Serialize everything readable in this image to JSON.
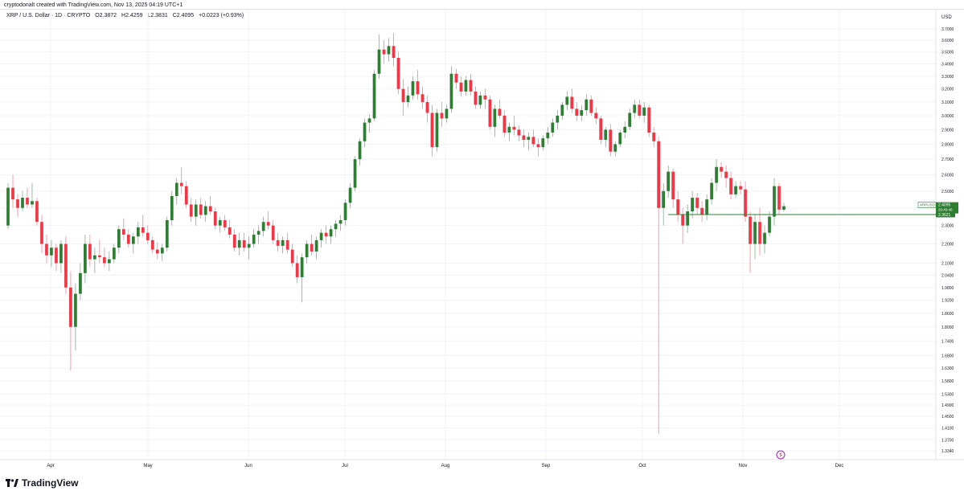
{
  "header": {
    "credit": "cryptodonalt created with TradingView.com, Nov 13, 2025 04:19 UTC+1"
  },
  "symbol": {
    "name": "XRP / U.S. Dollar · 1D · CRYPTO",
    "open": "O2.3872",
    "high": "H2.4259",
    "low": "L2.3831",
    "close": "C2.4095",
    "change": "+0.0223 (+0.93%)"
  },
  "brand": {
    "name": "TradingView",
    "logo_icon": "tradingview-logo-icon"
  },
  "colors": {
    "up": "#22ab94",
    "up_body": "#2e7d32",
    "down": "#f23645",
    "grid": "#f0f3fa",
    "price_line": "#2e7d32",
    "wick": "#5d606b"
  },
  "chart_data": {
    "type": "candlestick",
    "title": "XRP / U.S. Dollar · 1D · CRYPTO",
    "currency": "USD",
    "y_scale": "log",
    "ylim": [
      1.334,
      3.7
    ],
    "y_ticks": [
      "3.7000",
      "3.6000",
      "3.5000",
      "3.4000",
      "3.3000",
      "3.2000",
      "3.1000",
      "3.0000",
      "2.9000",
      "2.8000",
      "2.7000",
      "2.6000",
      "2.5000",
      "2.4000",
      "2.3000",
      "2.2000",
      "2.1000",
      "2.0400",
      "1.9800",
      "1.9200",
      "1.8600",
      "1.8000",
      "1.7400",
      "1.6800",
      "1.6300",
      "1.5800",
      "1.5300",
      "1.4900",
      "1.4500",
      "1.4100",
      "1.3700",
      "1.3340"
    ],
    "x_ticks": [
      "Apr",
      "May",
      "Jun",
      "Jul",
      "Aug",
      "Sep",
      "Oct",
      "Nov",
      "Dec"
    ],
    "price_label": {
      "symbol": "XRPUSD",
      "price": "2.4095",
      "countdown": "20:40:46"
    },
    "level_label": "2.3621",
    "level": 2.3621,
    "candles_ohlc": [
      [
        2.3,
        2.55,
        2.28,
        2.52
      ],
      [
        2.52,
        2.6,
        2.4,
        2.45
      ],
      [
        2.45,
        2.48,
        2.35,
        2.4
      ],
      [
        2.4,
        2.5,
        2.38,
        2.46
      ],
      [
        2.46,
        2.52,
        2.4,
        2.42
      ],
      [
        2.42,
        2.55,
        2.4,
        2.44
      ],
      [
        2.44,
        2.46,
        2.3,
        2.32
      ],
      [
        2.32,
        2.36,
        2.15,
        2.2
      ],
      [
        2.2,
        2.25,
        2.1,
        2.14
      ],
      [
        2.14,
        2.22,
        2.08,
        2.18
      ],
      [
        2.18,
        2.2,
        2.06,
        2.1
      ],
      [
        2.1,
        2.22,
        2.05,
        2.2
      ],
      [
        2.2,
        2.24,
        1.95,
        1.98
      ],
      [
        1.98,
        2.06,
        1.62,
        1.8
      ],
      [
        1.8,
        2.0,
        1.7,
        1.95
      ],
      [
        1.95,
        2.1,
        1.92,
        2.05
      ],
      [
        2.05,
        2.25,
        2.0,
        2.2
      ],
      [
        2.2,
        2.25,
        2.08,
        2.12
      ],
      [
        2.12,
        2.18,
        2.05,
        2.14
      ],
      [
        2.14,
        2.22,
        2.1,
        2.13
      ],
      [
        2.13,
        2.18,
        2.08,
        2.1
      ],
      [
        2.1,
        2.16,
        2.06,
        2.12
      ],
      [
        2.12,
        2.2,
        2.1,
        2.18
      ],
      [
        2.18,
        2.3,
        2.15,
        2.28
      ],
      [
        2.28,
        2.34,
        2.22,
        2.25
      ],
      [
        2.25,
        2.28,
        2.18,
        2.2
      ],
      [
        2.2,
        2.26,
        2.15,
        2.24
      ],
      [
        2.24,
        2.32,
        2.2,
        2.29
      ],
      [
        2.29,
        2.36,
        2.24,
        2.26
      ],
      [
        2.26,
        2.3,
        2.2,
        2.22
      ],
      [
        2.22,
        2.24,
        2.15,
        2.17
      ],
      [
        2.17,
        2.21,
        2.12,
        2.15
      ],
      [
        2.15,
        2.2,
        2.11,
        2.18
      ],
      [
        2.18,
        2.35,
        2.16,
        2.33
      ],
      [
        2.33,
        2.5,
        2.3,
        2.47
      ],
      [
        2.47,
        2.58,
        2.42,
        2.55
      ],
      [
        2.55,
        2.65,
        2.48,
        2.53
      ],
      [
        2.53,
        2.56,
        2.4,
        2.42
      ],
      [
        2.42,
        2.46,
        2.32,
        2.35
      ],
      [
        2.35,
        2.45,
        2.3,
        2.42
      ],
      [
        2.42,
        2.46,
        2.34,
        2.36
      ],
      [
        2.36,
        2.44,
        2.32,
        2.41
      ],
      [
        2.41,
        2.47,
        2.36,
        2.38
      ],
      [
        2.38,
        2.4,
        2.28,
        2.3
      ],
      [
        2.3,
        2.35,
        2.26,
        2.33
      ],
      [
        2.33,
        2.36,
        2.27,
        2.29
      ],
      [
        2.29,
        2.33,
        2.23,
        2.25
      ],
      [
        2.25,
        2.28,
        2.16,
        2.18
      ],
      [
        2.18,
        2.26,
        2.14,
        2.22
      ],
      [
        2.22,
        2.26,
        2.16,
        2.18
      ],
      [
        2.18,
        2.24,
        2.12,
        2.2
      ],
      [
        2.2,
        2.28,
        2.18,
        2.25
      ],
      [
        2.25,
        2.3,
        2.2,
        2.27
      ],
      [
        2.27,
        2.35,
        2.24,
        2.32
      ],
      [
        2.32,
        2.38,
        2.28,
        2.3
      ],
      [
        2.3,
        2.33,
        2.2,
        2.22
      ],
      [
        2.22,
        2.26,
        2.16,
        2.19
      ],
      [
        2.19,
        2.24,
        2.15,
        2.22
      ],
      [
        2.22,
        2.26,
        2.15,
        2.17
      ],
      [
        2.17,
        2.2,
        2.08,
        2.1
      ],
      [
        2.1,
        2.14,
        2.0,
        2.03
      ],
      [
        2.03,
        2.15,
        1.91,
        2.13
      ],
      [
        2.13,
        2.22,
        2.1,
        2.2
      ],
      [
        2.2,
        2.25,
        2.14,
        2.16
      ],
      [
        2.16,
        2.24,
        2.12,
        2.22
      ],
      [
        2.22,
        2.28,
        2.18,
        2.26
      ],
      [
        2.26,
        2.3,
        2.2,
        2.24
      ],
      [
        2.24,
        2.3,
        2.2,
        2.28
      ],
      [
        2.28,
        2.33,
        2.24,
        2.31
      ],
      [
        2.31,
        2.36,
        2.27,
        2.33
      ],
      [
        2.33,
        2.45,
        2.3,
        2.43
      ],
      [
        2.43,
        2.55,
        2.4,
        2.52
      ],
      [
        2.52,
        2.72,
        2.5,
        2.7
      ],
      [
        2.7,
        2.84,
        2.66,
        2.82
      ],
      [
        2.82,
        2.98,
        2.78,
        2.95
      ],
      [
        2.95,
        3.01,
        2.88,
        2.98
      ],
      [
        2.98,
        3.35,
        2.96,
        3.32
      ],
      [
        3.32,
        3.65,
        3.28,
        3.52
      ],
      [
        3.52,
        3.6,
        3.4,
        3.48
      ],
      [
        3.48,
        3.62,
        3.42,
        3.55
      ],
      [
        3.55,
        3.66,
        3.38,
        3.45
      ],
      [
        3.45,
        3.5,
        3.16,
        3.2
      ],
      [
        3.2,
        3.28,
        3.0,
        3.1
      ],
      [
        3.1,
        3.22,
        3.06,
        3.15
      ],
      [
        3.15,
        3.3,
        3.12,
        3.26
      ],
      [
        3.26,
        3.35,
        3.12,
        3.16
      ],
      [
        3.16,
        3.22,
        3.05,
        3.1
      ],
      [
        3.1,
        3.15,
        2.95,
        3.02
      ],
      [
        3.02,
        3.08,
        2.72,
        2.78
      ],
      [
        2.78,
        3.05,
        2.75,
        3.02
      ],
      [
        3.02,
        3.1,
        2.92,
        2.98
      ],
      [
        2.98,
        3.08,
        2.95,
        3.05
      ],
      [
        3.05,
        3.38,
        3.02,
        3.32
      ],
      [
        3.32,
        3.36,
        3.2,
        3.25
      ],
      [
        3.25,
        3.3,
        3.14,
        3.18
      ],
      [
        3.18,
        3.3,
        3.15,
        3.27
      ],
      [
        3.27,
        3.32,
        3.15,
        3.18
      ],
      [
        3.18,
        3.22,
        3.05,
        3.08
      ],
      [
        3.08,
        3.18,
        3.05,
        3.15
      ],
      [
        3.15,
        3.2,
        3.05,
        3.12
      ],
      [
        3.12,
        3.15,
        2.9,
        2.92
      ],
      [
        2.92,
        3.08,
        2.85,
        3.05
      ],
      [
        3.05,
        3.12,
        2.98,
        3.0
      ],
      [
        3.0,
        3.04,
        2.85,
        2.88
      ],
      [
        2.88,
        2.95,
        2.82,
        2.92
      ],
      [
        2.92,
        3.0,
        2.86,
        2.9
      ],
      [
        2.9,
        2.93,
        2.82,
        2.86
      ],
      [
        2.86,
        2.9,
        2.78,
        2.83
      ],
      [
        2.83,
        2.88,
        2.76,
        2.85
      ],
      [
        2.85,
        2.9,
        2.78,
        2.8
      ],
      [
        2.8,
        2.84,
        2.72,
        2.78
      ],
      [
        2.78,
        2.86,
        2.76,
        2.84
      ],
      [
        2.84,
        2.92,
        2.8,
        2.88
      ],
      [
        2.88,
        2.98,
        2.85,
        2.95
      ],
      [
        2.95,
        3.04,
        2.9,
        3.0
      ],
      [
        3.0,
        3.1,
        2.97,
        3.08
      ],
      [
        3.08,
        3.18,
        3.04,
        3.14
      ],
      [
        3.14,
        3.2,
        3.02,
        3.05
      ],
      [
        3.05,
        3.1,
        2.96,
        3.0
      ],
      [
        3.0,
        3.08,
        2.96,
        3.04
      ],
      [
        3.04,
        3.16,
        3.0,
        3.12
      ],
      [
        3.12,
        3.15,
        3.0,
        3.02
      ],
      [
        3.02,
        3.06,
        2.94,
        2.98
      ],
      [
        2.98,
        3.0,
        2.8,
        2.83
      ],
      [
        2.83,
        2.92,
        2.78,
        2.9
      ],
      [
        2.9,
        2.94,
        2.72,
        2.75
      ],
      [
        2.75,
        2.82,
        2.72,
        2.8
      ],
      [
        2.8,
        2.9,
        2.78,
        2.88
      ],
      [
        2.88,
        2.96,
        2.84,
        2.92
      ],
      [
        2.92,
        3.05,
        2.9,
        3.02
      ],
      [
        3.02,
        3.12,
        2.98,
        3.08
      ],
      [
        3.08,
        3.12,
        2.98,
        3.0
      ],
      [
        3.0,
        3.1,
        2.95,
        3.06
      ],
      [
        3.06,
        3.08,
        2.85,
        2.88
      ],
      [
        2.88,
        2.92,
        2.78,
        2.82
      ],
      [
        2.82,
        2.85,
        1.39,
        2.4
      ],
      [
        2.4,
        2.55,
        2.3,
        2.5
      ],
      [
        2.5,
        2.66,
        2.46,
        2.62
      ],
      [
        2.62,
        2.64,
        2.4,
        2.45
      ],
      [
        2.45,
        2.5,
        2.32,
        2.36
      ],
      [
        2.36,
        2.4,
        2.2,
        2.3
      ],
      [
        2.3,
        2.42,
        2.26,
        2.38
      ],
      [
        2.38,
        2.5,
        2.34,
        2.46
      ],
      [
        2.46,
        2.49,
        2.36,
        2.4
      ],
      [
        2.4,
        2.44,
        2.32,
        2.36
      ],
      [
        2.36,
        2.48,
        2.33,
        2.45
      ],
      [
        2.45,
        2.58,
        2.42,
        2.55
      ],
      [
        2.55,
        2.7,
        2.5,
        2.65
      ],
      [
        2.65,
        2.68,
        2.58,
        2.62
      ],
      [
        2.62,
        2.66,
        2.52,
        2.58
      ],
      [
        2.58,
        2.62,
        2.45,
        2.48
      ],
      [
        2.48,
        2.56,
        2.46,
        2.53
      ],
      [
        2.53,
        2.56,
        2.48,
        2.51
      ],
      [
        2.51,
        2.56,
        2.32,
        2.35
      ],
      [
        2.35,
        2.38,
        2.05,
        2.2
      ],
      [
        2.2,
        2.36,
        2.12,
        2.32
      ],
      [
        2.32,
        2.4,
        2.14,
        2.2
      ],
      [
        2.2,
        2.3,
        2.15,
        2.26
      ],
      [
        2.26,
        2.38,
        2.24,
        2.35
      ],
      [
        2.35,
        2.58,
        2.3,
        2.53
      ],
      [
        2.53,
        2.55,
        2.36,
        2.39
      ],
      [
        2.39,
        2.43,
        2.38,
        2.41
      ]
    ]
  }
}
